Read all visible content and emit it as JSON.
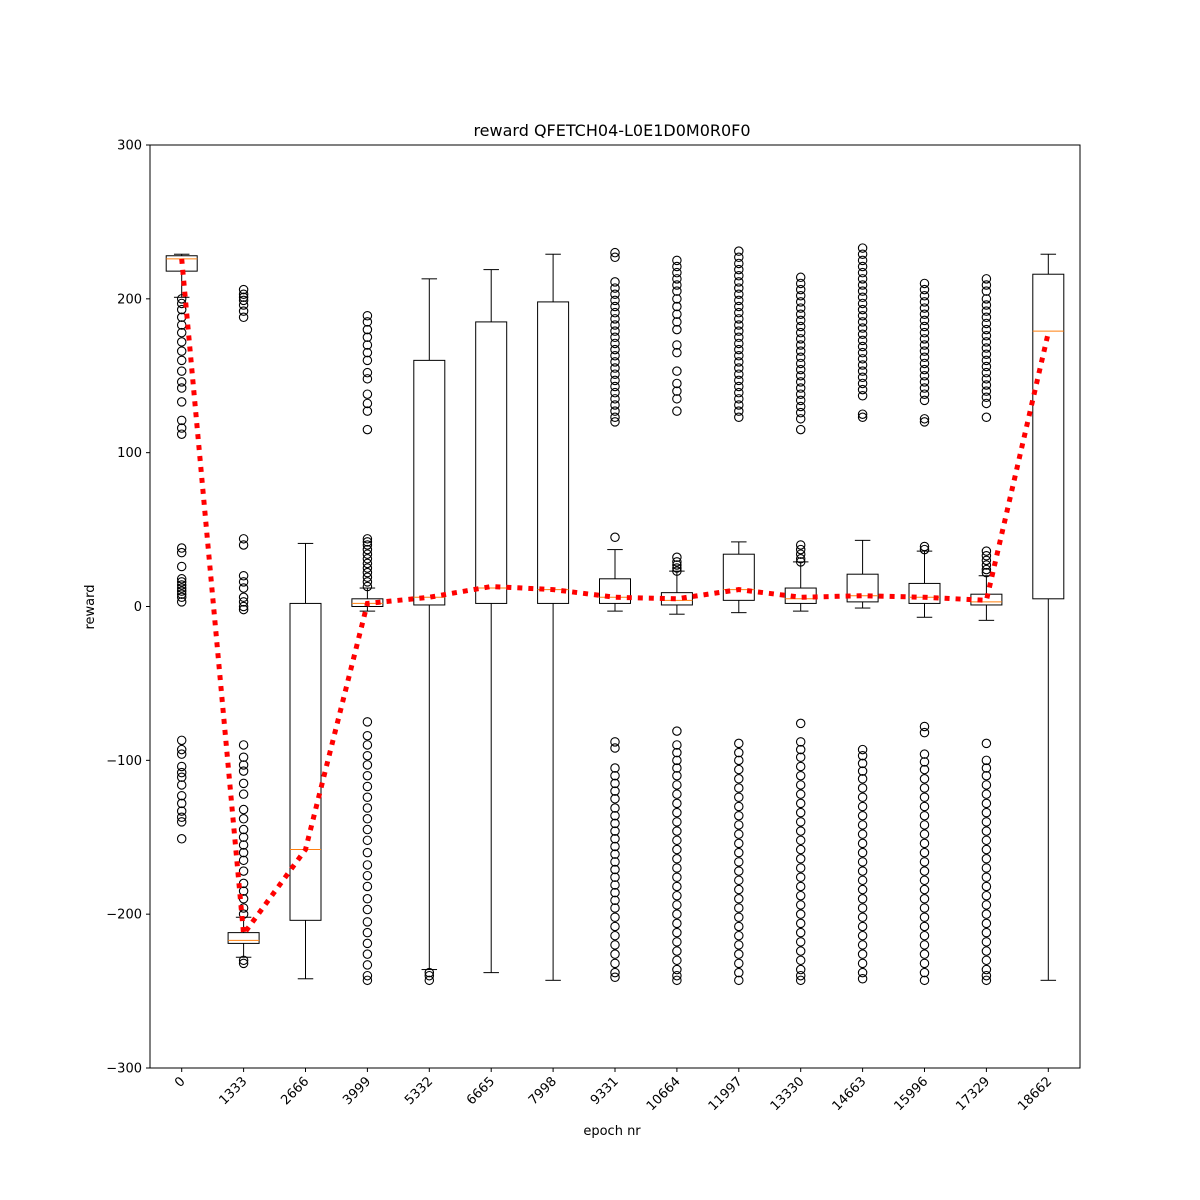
{
  "chart_data": {
    "type": "box",
    "title": "reward QFETCH04-L0E1D0M0R0F0",
    "xlabel": "epoch nr",
    "ylabel": "reward",
    "ylim": [
      -300,
      300
    ],
    "yticks": [
      300,
      200,
      100,
      0,
      -100,
      -200,
      -300
    ],
    "ytick_labels": [
      "300",
      "200",
      "100",
      "0",
      "−100",
      "−200",
      "−300"
    ],
    "grid": false,
    "legend": "none",
    "categories": [
      "0",
      "1333",
      "2666",
      "3999",
      "5332",
      "6665",
      "7998",
      "9331",
      "10664",
      "11997",
      "13330",
      "14663",
      "15996",
      "17329",
      "18662"
    ],
    "boxes": [
      {
        "whislo": 201,
        "q1": 218,
        "med": 226,
        "q3": 228,
        "whishi": 229,
        "fliers": [
          200,
          197,
          193,
          188,
          183,
          178,
          172,
          166,
          160,
          153,
          146,
          142,
          133,
          121,
          116,
          112,
          38,
          35,
          26,
          18,
          16,
          14,
          12,
          10,
          8,
          6,
          3,
          -87,
          -93,
          -96,
          -104,
          -108,
          -111,
          -116,
          -123,
          -128,
          -133,
          -137,
          -140,
          -151
        ]
      },
      {
        "whislo": -228,
        "q1": -219,
        "med": -217,
        "q3": -212,
        "whishi": -202,
        "fliers": [
          206,
          203,
          201,
          199,
          196,
          192,
          188,
          44,
          40,
          20,
          16,
          12,
          6,
          3,
          0,
          -2,
          -90,
          -98,
          -103,
          -107,
          -115,
          -122,
          -132,
          -138,
          -145,
          -150,
          -155,
          -160,
          -165,
          -172,
          -180,
          -185,
          -190,
          -196,
          -200,
          -230,
          -232
        ]
      },
      {
        "whislo": -242,
        "q1": -204,
        "med": -158,
        "q3": 2,
        "whishi": 41,
        "fliers": []
      },
      {
        "whislo": -3,
        "q1": 0,
        "med": 2,
        "q3": 5,
        "whishi": 12,
        "fliers": [
          189,
          185,
          180,
          175,
          170,
          165,
          160,
          152,
          148,
          138,
          132,
          127,
          115,
          44,
          42,
          40,
          37,
          34,
          31,
          28,
          25,
          22,
          19,
          16,
          13,
          -75,
          -84,
          -90,
          -97,
          -103,
          -110,
          -117,
          -124,
          -131,
          -138,
          -145,
          -152,
          -160,
          -168,
          -175,
          -182,
          -190,
          -197,
          -205,
          -212,
          -219,
          -226,
          -233,
          -240,
          -243
        ]
      },
      {
        "whislo": -236,
        "q1": 1,
        "med": 6,
        "q3": 160,
        "whishi": 213,
        "fliers": [
          -238,
          -240,
          -243
        ]
      },
      {
        "whislo": -238,
        "q1": 2,
        "med": 12,
        "q3": 185,
        "whishi": 219,
        "fliers": []
      },
      {
        "whislo": -243,
        "q1": 2,
        "med": 11,
        "q3": 198,
        "whishi": 229,
        "fliers": []
      },
      {
        "whislo": -3,
        "q1": 2,
        "med": 6,
        "q3": 18,
        "whishi": 37,
        "fliers": [
          230,
          227,
          211,
          207,
          203,
          199,
          195,
          191,
          187,
          183,
          179,
          175,
          171,
          167,
          163,
          159,
          155,
          151,
          147,
          143,
          139,
          135,
          131,
          127,
          123,
          120,
          45,
          -88,
          -92,
          -105,
          -110,
          -115,
          -120,
          -125,
          -131,
          -136,
          -141,
          -146,
          -151,
          -156,
          -161,
          -166,
          -171,
          -176,
          -181,
          -186,
          -191,
          -196,
          -202,
          -208,
          -214,
          -220,
          -226,
          -232,
          -238,
          -241
        ]
      },
      {
        "whislo": -5,
        "q1": 1,
        "med": 4,
        "q3": 9,
        "whishi": 23,
        "fliers": [
          225,
          221,
          217,
          213,
          209,
          205,
          200,
          195,
          190,
          185,
          180,
          170,
          165,
          153,
          145,
          140,
          135,
          127,
          32,
          29,
          27,
          25,
          23,
          -81,
          -90,
          -95,
          -100,
          -105,
          -110,
          -116,
          -122,
          -128,
          -134,
          -140,
          -146,
          -152,
          -158,
          -164,
          -170,
          -176,
          -182,
          -188,
          -194,
          -200,
          -206,
          -212,
          -218,
          -224,
          -230,
          -236,
          -240,
          -243
        ]
      },
      {
        "whislo": -4,
        "q1": 4,
        "med": 11,
        "q3": 34,
        "whishi": 42,
        "fliers": [
          231,
          227,
          223,
          219,
          215,
          211,
          207,
          203,
          199,
          195,
          191,
          187,
          183,
          179,
          175,
          171,
          167,
          163,
          159,
          155,
          151,
          147,
          143,
          139,
          135,
          131,
          127,
          123,
          -89,
          -95,
          -100,
          -106,
          -112,
          -118,
          -124,
          -130,
          -136,
          -142,
          -148,
          -154,
          -160,
          -166,
          -172,
          -178,
          -184,
          -190,
          -196,
          -202,
          -208,
          -214,
          -220,
          -226,
          -232,
          -238,
          -243
        ]
      },
      {
        "whislo": -3,
        "q1": 2,
        "med": 5,
        "q3": 12,
        "whishi": 29,
        "fliers": [
          214,
          210,
          206,
          202,
          198,
          194,
          190,
          186,
          182,
          178,
          174,
          170,
          166,
          162,
          158,
          154,
          150,
          146,
          142,
          138,
          134,
          130,
          126,
          122,
          115,
          40,
          37,
          34,
          31,
          29,
          -76,
          -88,
          -93,
          -98,
          -104,
          -110,
          -116,
          -122,
          -128,
          -134,
          -140,
          -146,
          -152,
          -158,
          -164,
          -170,
          -176,
          -182,
          -188,
          -194,
          -200,
          -206,
          -212,
          -218,
          -224,
          -230,
          -236,
          -240,
          -243
        ]
      },
      {
        "whislo": -1,
        "q1": 3,
        "med": 7,
        "q3": 21,
        "whishi": 43,
        "fliers": [
          233,
          229,
          225,
          221,
          217,
          213,
          209,
          205,
          201,
          197,
          193,
          189,
          185,
          181,
          177,
          173,
          169,
          165,
          161,
          157,
          153,
          149,
          145,
          141,
          137,
          125,
          123,
          -93,
          -97,
          -102,
          -107,
          -112,
          -118,
          -124,
          -130,
          -136,
          -142,
          -148,
          -154,
          -160,
          -166,
          -172,
          -178,
          -184,
          -190,
          -196,
          -202,
          -208,
          -214,
          -220,
          -226,
          -232,
          -238,
          -242
        ]
      },
      {
        "whislo": -7,
        "q1": 2,
        "med": 6,
        "q3": 15,
        "whishi": 36,
        "fliers": [
          210,
          206,
          202,
          198,
          194,
          190,
          186,
          182,
          178,
          174,
          170,
          166,
          162,
          158,
          154,
          150,
          146,
          142,
          138,
          134,
          122,
          120,
          39,
          37,
          -78,
          -82,
          -96,
          -101,
          -106,
          -112,
          -118,
          -124,
          -130,
          -136,
          -142,
          -148,
          -154,
          -160,
          -166,
          -172,
          -178,
          -184,
          -190,
          -196,
          -202,
          -208,
          -214,
          -220,
          -226,
          -232,
          -238,
          -243
        ]
      },
      {
        "whislo": -9,
        "q1": 1,
        "med": 3,
        "q3": 8,
        "whishi": 20,
        "fliers": [
          213,
          209,
          205,
          200,
          196,
          192,
          188,
          184,
          180,
          176,
          172,
          168,
          164,
          160,
          156,
          152,
          148,
          144,
          140,
          136,
          132,
          123,
          36,
          33,
          30,
          27,
          24,
          22,
          -89,
          -100,
          -105,
          -110,
          -116,
          -122,
          -128,
          -134,
          -140,
          -146,
          -152,
          -158,
          -164,
          -170,
          -176,
          -182,
          -188,
          -194,
          -200,
          -206,
          -212,
          -218,
          -224,
          -230,
          -236,
          -240,
          -243
        ]
      },
      {
        "whislo": -243,
        "q1": 5,
        "med": 179,
        "q3": 216,
        "whishi": 229,
        "fliers": []
      }
    ],
    "mean_line": {
      "values": [
        226,
        -213,
        -158,
        2,
        6,
        13,
        11,
        6,
        5,
        11,
        6,
        7,
        6,
        4,
        178
      ],
      "color": "#ff0000",
      "style": "dotted"
    },
    "colors": {
      "box": "#000000",
      "median": "#ff7f0e",
      "mean_line": "#ff0000",
      "flier": "#000000"
    }
  }
}
